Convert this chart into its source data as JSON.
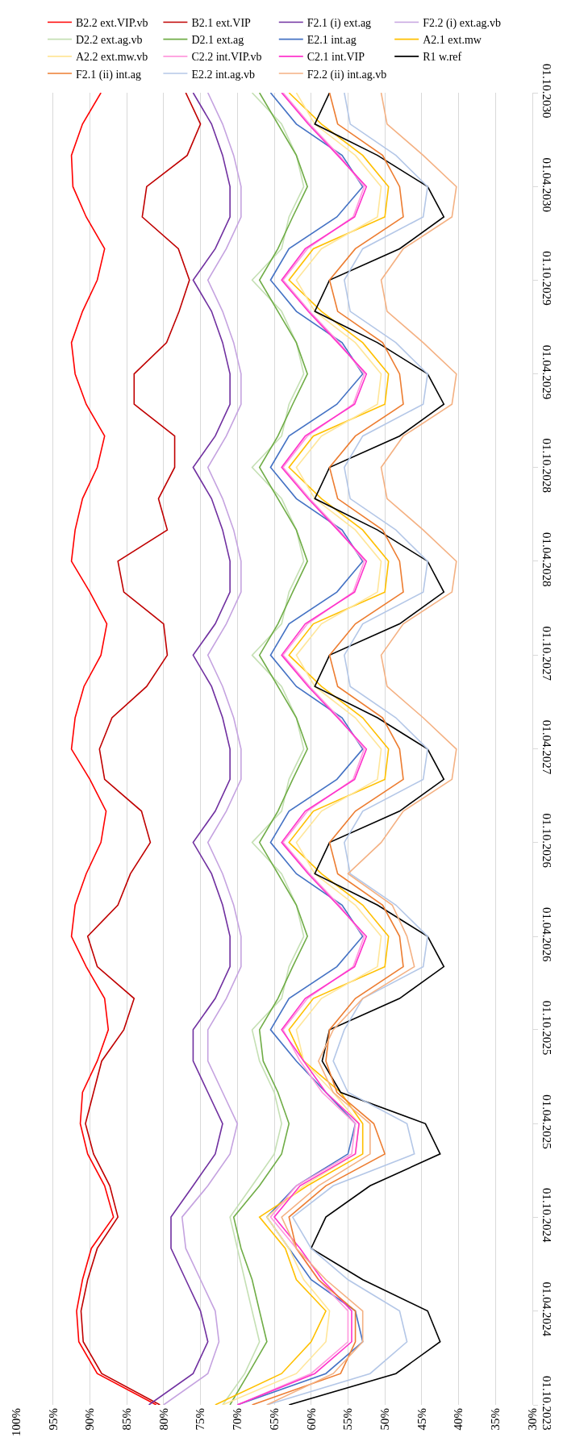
{
  "chart_data": {
    "type": "line",
    "orientation": "horizontal",
    "legend": "top",
    "grid": "x",
    "marker": "none",
    "line_style": "solid",
    "xlim": [
      100,
      30
    ],
    "xticks": [
      {
        "value": 100,
        "label": "100%"
      },
      {
        "value": 95,
        "label": "95%"
      },
      {
        "value": 90,
        "label": "90%"
      },
      {
        "value": 85,
        "label": "85%"
      },
      {
        "value": 80,
        "label": "80%"
      },
      {
        "value": 75,
        "label": "75%"
      },
      {
        "value": 70,
        "label": "70%"
      },
      {
        "value": 65,
        "label": "65%"
      },
      {
        "value": 60,
        "label": "60%"
      },
      {
        "value": 55,
        "label": "55%"
      },
      {
        "value": 50,
        "label": "50%"
      },
      {
        "value": 45,
        "label": "45%"
      },
      {
        "value": 40,
        "label": "40%"
      },
      {
        "value": 35,
        "label": "35%"
      },
      {
        "value": 30,
        "label": "30%"
      }
    ],
    "ylim": [
      "2023-10-01",
      "2030-10-01"
    ],
    "yticks": [
      {
        "value": "2023-10-01",
        "label": "01.10.2023"
      },
      {
        "value": "2024-04-01",
        "label": "01.04.2024"
      },
      {
        "value": "2024-10-01",
        "label": "01.10.2024"
      },
      {
        "value": "2025-04-01",
        "label": "01.04.2025"
      },
      {
        "value": "2025-10-01",
        "label": "01.10.2025"
      },
      {
        "value": "2026-04-01",
        "label": "01.04.2026"
      },
      {
        "value": "2026-10-01",
        "label": "01.10.2026"
      },
      {
        "value": "2027-04-01",
        "label": "01.04.2027"
      },
      {
        "value": "2027-10-01",
        "label": "01.10.2027"
      },
      {
        "value": "2028-04-01",
        "label": "01.04.2028"
      },
      {
        "value": "2028-10-01",
        "label": "01.10.2028"
      },
      {
        "value": "2029-04-01",
        "label": "01.04.2029"
      },
      {
        "value": "2029-10-01",
        "label": "01.10.2029"
      },
      {
        "value": "2030-04-01",
        "label": "01.04.2030"
      },
      {
        "value": "2030-10-01",
        "label": "01.10.2030"
      }
    ],
    "x": [
      "2023-10-01",
      "2023-12-01",
      "2024-02-01",
      "2024-04-01",
      "2024-06-01",
      "2024-08-01",
      "2024-10-01",
      "2024-12-01",
      "2025-02-01",
      "2025-04-01",
      "2025-06-01",
      "2025-08-01",
      "2025-10-01",
      "2025-12-01",
      "2026-02-01",
      "2026-04-01",
      "2026-06-01",
      "2026-08-01",
      "2026-10-01",
      "2026-12-01",
      "2027-02-01",
      "2027-04-01",
      "2027-06-01",
      "2027-08-01",
      "2027-10-01",
      "2027-12-01",
      "2028-02-01",
      "2028-04-01",
      "2028-06-01",
      "2028-08-01",
      "2028-10-01",
      "2028-12-01",
      "2029-02-01",
      "2029-04-01",
      "2029-06-01",
      "2029-08-01",
      "2029-10-01",
      "2029-12-01",
      "2030-02-01",
      "2030-04-01",
      "2030-06-01",
      "2030-08-01",
      "2030-10-01"
    ],
    "series": [
      {
        "name": "B2.2 ext.VIP.vb",
        "color": "#ff0000",
        "values": [
          81,
          89,
          91.5,
          91.8,
          91,
          89.8,
          86.8,
          88,
          90.3,
          91.3,
          91,
          89,
          87.5,
          88,
          90.5,
          92.5,
          92,
          90.5,
          88.5,
          87.8,
          90,
          92.5,
          92,
          90.8,
          88.5,
          87.7,
          90,
          92.5,
          92,
          91,
          89,
          88,
          90.5,
          92,
          92.5,
          91,
          89,
          88,
          90.5,
          92.3,
          92.5,
          91,
          88.5
        ]
      },
      {
        "name": "B2.1 ext.VIP",
        "color": "#c00000",
        "values": [
          80.5,
          88.4,
          90.9,
          91.2,
          90.3,
          89,
          86.2,
          87.3,
          89.5,
          90.6,
          89.5,
          88.4,
          85.4,
          84,
          89,
          90.3,
          86.2,
          84.5,
          81.8,
          83,
          88,
          88.7,
          87,
          82.3,
          79.5,
          80,
          85.4,
          86.2,
          79.5,
          80.7,
          78.5,
          78.5,
          84,
          84,
          79.6,
          77.9,
          76.5,
          78,
          82.9,
          82.3,
          76.8,
          75,
          77
        ]
      },
      {
        "name": "F2.1 (i) ext.ag",
        "color": "#7030a0",
        "values": [
          82,
          76,
          74,
          75,
          77,
          79,
          79,
          76,
          73,
          72,
          74,
          76,
          76,
          73,
          71,
          71,
          72,
          73.5,
          76,
          73,
          71,
          71,
          72,
          73.5,
          76,
          73,
          71,
          71,
          72,
          73.5,
          76,
          73,
          71,
          71,
          72,
          73.5,
          76,
          73,
          71,
          71,
          72,
          73.5,
          76
        ]
      },
      {
        "name": "F2.2 (i) ext.ag.vb",
        "color": "#c5a3e0",
        "values": [
          80,
          74,
          72.5,
          73,
          75,
          77,
          77.5,
          74,
          71,
          70,
          72,
          74,
          74,
          71.5,
          69.5,
          69.5,
          70.5,
          72,
          74,
          71.5,
          69.5,
          69.5,
          70.5,
          72,
          74,
          71.5,
          69.5,
          69.5,
          70.5,
          72,
          74,
          71.5,
          69.5,
          69.5,
          70.5,
          72,
          74,
          71.5,
          69.5,
          69.5,
          70.5,
          72,
          74
        ]
      },
      {
        "name": "D2.2 ext.ag.vb",
        "color": "#c5e0b4",
        "values": [
          72,
          69,
          67,
          68,
          69,
          70,
          71,
          68,
          65,
          64,
          65,
          67,
          68,
          64,
          63,
          61,
          62,
          64,
          68,
          64,
          63,
          61,
          62,
          64,
          68,
          64,
          63,
          61,
          62,
          64,
          68,
          64,
          63,
          61,
          62,
          64,
          68,
          64,
          63,
          61,
          62,
          64,
          68
        ]
      },
      {
        "name": "D2.1 ext.ag",
        "color": "#70ad47",
        "values": [
          71,
          68.5,
          66,
          67,
          68,
          69.5,
          70.5,
          67,
          64,
          63,
          64.5,
          66.5,
          67,
          64.5,
          62.5,
          60.5,
          62,
          64.5,
          67,
          64.5,
          62.5,
          60.5,
          62,
          64.5,
          67,
          64.5,
          62.5,
          60.5,
          62,
          64.5,
          67,
          64.5,
          62.5,
          60.5,
          62,
          64.5,
          67,
          64.5,
          62.5,
          60.5,
          62,
          64.5,
          67
        ]
      },
      {
        "name": "E2.1 int.ag",
        "color": "#4472c4",
        "values": [
          70,
          58,
          53,
          54,
          60,
          63,
          66,
          62,
          55,
          54,
          58,
          62,
          65.5,
          63,
          56.5,
          53,
          55.8,
          62,
          65.5,
          63,
          56.5,
          53,
          55.8,
          62,
          65.5,
          63,
          56.5,
          53,
          55.8,
          62,
          65.5,
          63,
          56.5,
          53,
          55.8,
          62,
          65.5,
          63,
          56.5,
          53,
          55.8,
          62,
          65.5
        ]
      },
      {
        "name": "A2.1 ext.mw",
        "color": "#ffc000",
        "values": [
          73,
          64,
          60,
          58,
          62,
          63.5,
          67,
          60.5,
          53,
          53,
          56,
          61,
          63,
          59.7,
          50,
          49.5,
          53,
          58.6,
          63,
          59.7,
          50,
          49.5,
          53,
          58.6,
          63,
          59.7,
          50,
          49.5,
          53,
          58.6,
          63,
          59.7,
          50,
          49.5,
          53,
          58.6,
          63,
          59.7,
          50,
          49.5,
          53,
          58.6,
          63
        ]
      },
      {
        "name": "A2.2 ext.mw.vb",
        "color": "#ffe699",
        "values": [
          72,
          62,
          58,
          57.5,
          61,
          63,
          66,
          61,
          54,
          53.5,
          57,
          61,
          62,
          58.6,
          51,
          50.5,
          54,
          59.5,
          62,
          58.6,
          51,
          50.5,
          54,
          59.5,
          62,
          58.6,
          51,
          50.5,
          54,
          59.5,
          62,
          58.6,
          51,
          50.5,
          54,
          59.5,
          62,
          58.6,
          51,
          50.5,
          54,
          59.5,
          62
        ]
      },
      {
        "name": "C2.2 int.VIP.vb",
        "color": "#ff99dd",
        "values": [
          70,
          60,
          55,
          55,
          59,
          62,
          65.5,
          62,
          54.5,
          54,
          58.5,
          61.5,
          63.8,
          60.5,
          54.3,
          52.8,
          56.2,
          60.2,
          63.8,
          60.5,
          54.3,
          52.8,
          56.2,
          60.2,
          63.8,
          60.5,
          54.3,
          52.8,
          56.2,
          60.2,
          63.8,
          60.5,
          54.3,
          52.8,
          56.2,
          60.2,
          63.8,
          60.5,
          54.3,
          52.8,
          56.2,
          60.2,
          63.8
        ]
      },
      {
        "name": "C2.1 int.VIP",
        "color": "#ff33cc",
        "values": [
          70,
          59.5,
          54.5,
          54.5,
          58.5,
          61.5,
          65,
          61.5,
          54,
          53.5,
          58,
          61,
          64,
          60.8,
          54.1,
          52.5,
          56.4,
          60.4,
          64,
          60.8,
          54.1,
          52.5,
          56.4,
          60.4,
          64,
          60.8,
          54.1,
          52.5,
          56.4,
          60.4,
          64,
          60.8,
          54.1,
          52.5,
          56.4,
          60.4,
          64,
          60.8,
          54.1,
          52.5,
          56.4,
          60.4,
          64
        ]
      },
      {
        "name": "R1 w.ref",
        "color": "#000000",
        "values": [
          63,
          48.5,
          42.5,
          44.2,
          53,
          60,
          58,
          52,
          42.5,
          44.5,
          56,
          58.5,
          57.5,
          48,
          42,
          44.2,
          51,
          59.5,
          57.5,
          48,
          42,
          44.2,
          51,
          59.5,
          57.5,
          48,
          42,
          44.2,
          51,
          59.5,
          57.5,
          48,
          42,
          44.2,
          51,
          59.5,
          57.5,
          48,
          42,
          44.2,
          51,
          59.5,
          57.5
        ]
      },
      {
        "name": "F2.1 (ii) int.ag",
        "color": "#ed7d31",
        "values": [
          68,
          56,
          54,
          54,
          59,
          62,
          63,
          58,
          50,
          51.5,
          56.5,
          58,
          57.5,
          54,
          47.5,
          48,
          50.3,
          56.4,
          57.5,
          54,
          47.5,
          48,
          50.3,
          56.4,
          57.5,
          54,
          47.5,
          48,
          50.3,
          56.4,
          57.5,
          54,
          47.5,
          48,
          50.3,
          56.4,
          57.5,
          54,
          47.5,
          48,
          50.3,
          56.4,
          57.5
        ]
      },
      {
        "name": "E2.2 int.ag.vb",
        "color": "#b4c7e7",
        "values": [
          66,
          52,
          47,
          48,
          55,
          60,
          62.5,
          57,
          46,
          47,
          55,
          57,
          55.5,
          53,
          44.8,
          44.2,
          48.5,
          54.7,
          55.5,
          53,
          44.8,
          44.2,
          48.5,
          54.7,
          55.5,
          53,
          44.8,
          44.2,
          48.5,
          54.7,
          55.5,
          53,
          44.8,
          44.2,
          48.5,
          54.7,
          55.5,
          53,
          44.8,
          44.2,
          48.5,
          54.7,
          55.5
        ]
      },
      {
        "name": "F2.2 (ii) int.ag.vb",
        "color": "#f4b183",
        "values": [
          66,
          57,
          53,
          53,
          58,
          62,
          64,
          59,
          52,
          52,
          57,
          59,
          57,
          53,
          46,
          47,
          49,
          55,
          50.5,
          47.5,
          40.9,
          40.3,
          44.8,
          49.7,
          50.5,
          47.5,
          40.9,
          40.3,
          44.8,
          49.7,
          50.5,
          47.5,
          40.9,
          40.3,
          44.8,
          49.7,
          50.5,
          47.5,
          40.9,
          40.3,
          44.8,
          49.7,
          50.5
        ]
      }
    ]
  }
}
